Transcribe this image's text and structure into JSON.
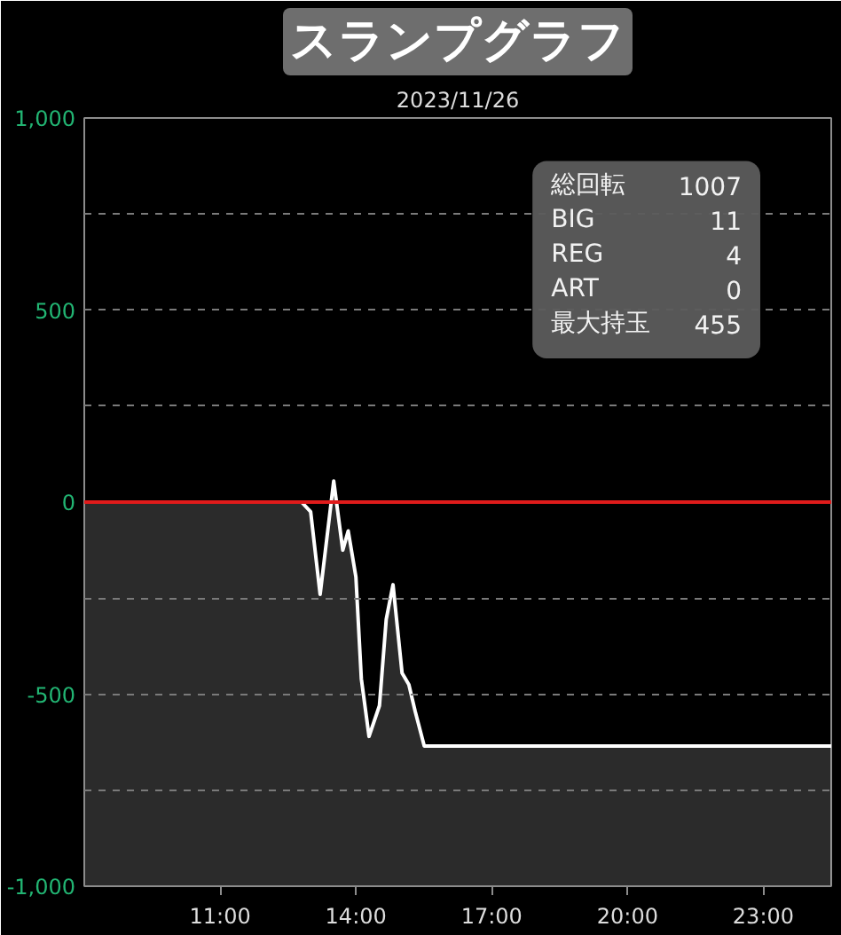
{
  "chart_data": {
    "type": "area",
    "title": "スランプグラフ",
    "subtitle": "2023/11/26",
    "x": [
      8,
      12.8,
      13.0,
      13.21,
      13.51,
      13.71,
      13.83,
      14.0,
      14.12,
      14.29,
      14.52,
      14.67,
      14.82,
      15.02,
      15.17,
      15.31,
      15.51,
      24.5
    ],
    "series": [
      {
        "color": "#ffffff",
        "values": [
          0,
          0,
          -25,
          -240,
          55,
          -125,
          -75,
          -195,
          -460,
          -610,
          -530,
          -305,
          -215,
          -445,
          -475,
          -545,
          -635,
          -635
        ]
      }
    ],
    "xlim": [
      8,
      24.5
    ],
    "xticks": [
      {
        "value": 11,
        "label": "11:00"
      },
      {
        "value": 14,
        "label": "14:00"
      },
      {
        "value": 17,
        "label": "17:00"
      },
      {
        "value": 20,
        "label": "20:00"
      },
      {
        "value": 23,
        "label": "23:00"
      }
    ],
    "ylim": [
      -1000,
      1000
    ],
    "yticks": [
      {
        "value": 1000,
        "label": "1,000"
      },
      {
        "value": 750,
        "label": null
      },
      500,
      {
        "value": 250,
        "label": null
      },
      0,
      {
        "value": -250,
        "label": null
      },
      -500,
      {
        "value": -750,
        "label": null
      },
      {
        "value": -1000,
        "label": "-1,000"
      }
    ],
    "grid": "y",
    "ref_lines": [
      {
        "axis": "y",
        "value": 0,
        "color": "#e01b1b"
      }
    ],
    "annotations": [
      "総回転 1007",
      "BIG 11",
      "REG 4",
      "ART 0",
      "最大持玉 455"
    ]
  }
}
